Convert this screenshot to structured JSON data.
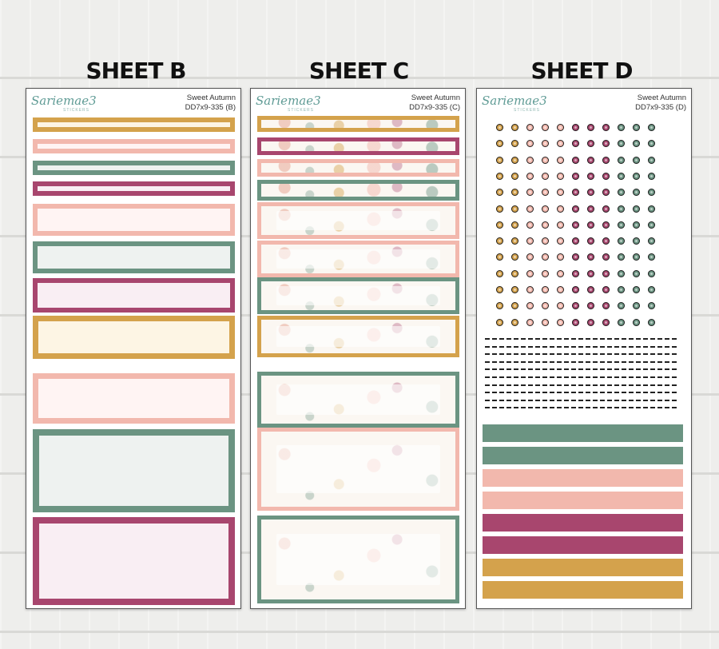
{
  "titles": {
    "b": "SHEET B",
    "c": "SHEET C",
    "d": "SHEET D"
  },
  "brand": {
    "logo": "Sariemae3",
    "sub": "STICKERS"
  },
  "sheet_b": {
    "name": "Sweet Autumn",
    "code": "DD7x9-335 (B)"
  },
  "sheet_c": {
    "name": "Sweet Autumn",
    "code": "DD7x9-335 (C)"
  },
  "sheet_d": {
    "name": "Sweet Autumn",
    "code": "DD7x9-335 (D)"
  },
  "colors": {
    "mustard": "#d4a24c",
    "pink": "#f2b8ad",
    "sage": "#6b9482",
    "berry": "#a8466e"
  },
  "sheet_b_boxes": [
    "mustard",
    "pink",
    "sage",
    "berry",
    "pink",
    "sage",
    "berry",
    "mustard",
    "pink",
    "sage",
    "berry"
  ],
  "sheet_c_boxes": [
    "mustard",
    "berry",
    "pink",
    "sage",
    "pink",
    "pink",
    "sage",
    "mustard",
    "sage",
    "pink",
    "sage"
  ],
  "sheet_d_dot_columns": [
    "mustard",
    "mustard",
    "pink",
    "pink",
    "pink",
    "berry",
    "berry",
    "berry",
    "sage",
    "sage",
    "sage"
  ],
  "sheet_d_strips": [
    "sage",
    "sage",
    "pink",
    "pink",
    "berry",
    "berry",
    "mustard",
    "mustard"
  ]
}
